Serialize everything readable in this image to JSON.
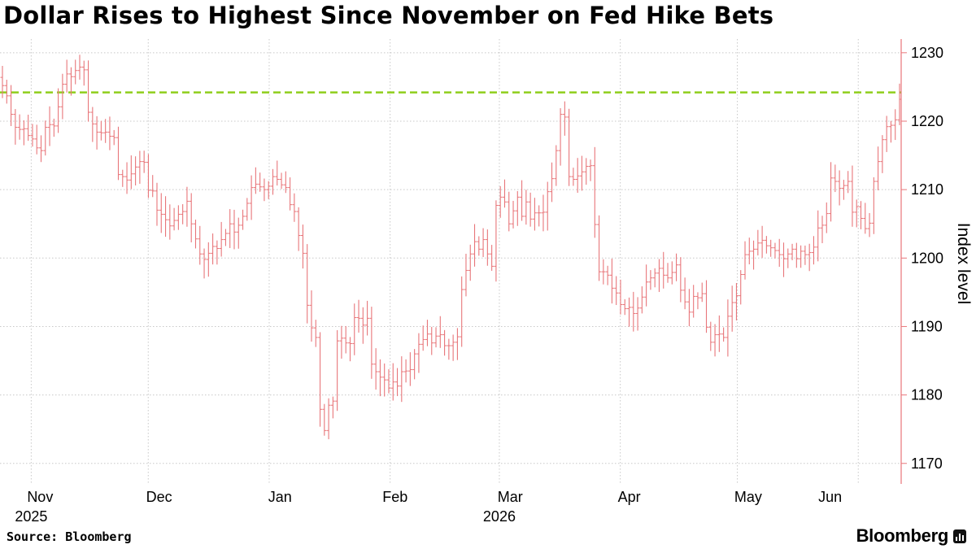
{
  "header": {
    "title": "Dollar Rises to Highest Since November on Fed Hike Bets"
  },
  "footer": {
    "source": "Source: Bloomberg",
    "brand": "Bloomberg"
  },
  "colors": {
    "bars": "#e8767a",
    "reference_line": "#8fce1c",
    "grid": "#c8c8c8",
    "axis": "#e8767a"
  },
  "icons": {
    "brand": "bloomberg-terminal-icon"
  },
  "chart_data": {
    "type": "ohlc-bar",
    "title": "Dollar Rises to Highest Since November on Fed Hike Bets",
    "ylabel": "Index level",
    "ylim": [
      1167,
      1232
    ],
    "yticks": [
      1170,
      1180,
      1190,
      1200,
      1210,
      1220,
      1230
    ],
    "x_ticks": [
      {
        "label": "Nov",
        "date": "2025-11-01"
      },
      {
        "label": "Dec",
        "date": "2025-12-01"
      },
      {
        "label": "Jan",
        "date": "2026-01-01"
      },
      {
        "label": "Feb",
        "date": "2026-02-01"
      },
      {
        "label": "Mar",
        "date": "2026-03-01"
      },
      {
        "label": "Apr",
        "date": "2026-04-01"
      },
      {
        "label": "May",
        "date": "2026-05-01"
      },
      {
        "label": "Jun",
        "date": "2026-06-01"
      }
    ],
    "year_labels": [
      {
        "label": "2025",
        "date": "2025-11-01"
      },
      {
        "label": "2026",
        "date": "2026-03-01"
      }
    ],
    "reference_line": {
      "value": 1224.2
    },
    "grid": true,
    "series": [
      {
        "values": [
          1225.2,
          1223.7,
          1221.0,
          1219.1,
          1218.8,
          1218.9,
          1217.9,
          1217.4,
          1216.1,
          1215.7,
          1219.1,
          1219.5,
          1219.3,
          1222.1,
          1225.4,
          1226.9,
          1226.5,
          1227.4,
          1227.9,
          1227.5,
          1221.3,
          1219.6,
          1218.4,
          1218.3,
          1218.4,
          1217.8,
          1217.6,
          1212.2,
          1211.9,
          1211.4,
          1212.3,
          1213.3,
          1214.1,
          1214.0,
          1209.9,
          1209.8,
          1207.0,
          1206.4,
          1205.6,
          1204.7,
          1205.5,
          1206.4,
          1206.8,
          1208.3,
          1205.0,
          1202.8,
          1200.6,
          1199.8,
          1200.7,
          1201.7,
          1201.4,
          1202.7,
          1203.6,
          1205.0,
          1203.8,
          1204.8,
          1206.1,
          1208.0,
          1210.3,
          1210.8,
          1210.4,
          1210.0,
          1210.5,
          1211.9,
          1211.5,
          1210.7,
          1210.3,
          1207.8,
          1206.8,
          1203.3,
          1200.7,
          1193.1,
          1189.8,
          1188.4,
          1177.9,
          1174.8,
          1178.5,
          1179.1,
          1187.9,
          1188.3,
          1187.6,
          1187.5,
          1191.3,
          1191.2,
          1190.2,
          1191.2,
          1184.5,
          1183.4,
          1182.6,
          1182.2,
          1181.0,
          1181.9,
          1181.3,
          1183.4,
          1183.5,
          1183.7,
          1186.0,
          1187.4,
          1188.1,
          1188.9,
          1187.6,
          1188.6,
          1188.8,
          1187.2,
          1187.2,
          1187.7,
          1188.5,
          1195.4,
          1198.2,
          1200.6,
          1202.4,
          1201.3,
          1202.7,
          1200.6,
          1198.8,
          1207.7,
          1208.9,
          1208.2,
          1205.0,
          1206.9,
          1208.9,
          1206.1,
          1208.2,
          1205.7,
          1206.6,
          1206.6,
          1206.7,
          1209.7,
          1211.6,
          1215.7,
          1221.0,
          1220.6,
          1211.9,
          1211.5,
          1212.0,
          1212.6,
          1213.4,
          1213.5,
          1204.9,
          1198.0,
          1198.0,
          1197.5,
          1195.6,
          1194.9,
          1193.2,
          1192.6,
          1192.8,
          1191.9,
          1192.7,
          1194.3,
          1196.5,
          1197.1,
          1197.8,
          1198.5,
          1197.5,
          1197.1,
          1197.9,
          1199.0,
          1195.3,
          1193.6,
          1192.1,
          1194.4,
          1194.2,
          1194.8,
          1189.9,
          1187.7,
          1188.8,
          1188.9,
          1188.4,
          1191.5,
          1193.5,
          1194.5,
          1197.6,
          1200.5,
          1201.0,
          1201.3,
          1202.2,
          1202.6,
          1201.8,
          1201.5,
          1201.1,
          1200.5,
          1199.9,
          1200.6,
          1201.3,
          1199.9,
          1201.0,
          1200.5,
          1200.8,
          1201.6,
          1204.4,
          1204.8,
          1206.5,
          1211.7,
          1211.2,
          1210.2,
          1210.6,
          1211.2,
          1206.7,
          1207.5,
          1205.8,
          1204.3,
          1205.1,
          1211.2,
          1214.1,
          1217.3,
          1219.2,
          1219.4,
          1220.2,
          1223.2
        ]
      }
    ]
  }
}
